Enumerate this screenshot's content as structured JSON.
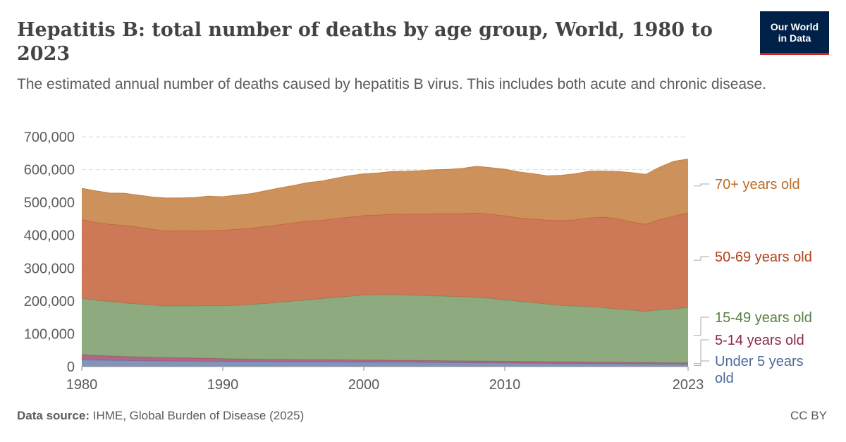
{
  "title": "Hepatitis B: total number of deaths by age group, World, 1980 to 2023",
  "subtitle": "The estimated annual number of deaths caused by hepatitis B virus. This includes both acute and chronic disease.",
  "logo": {
    "line1": "Our World",
    "line2": "in Data",
    "bg_color": "#002147",
    "accent_color": "#ce261e"
  },
  "footer": {
    "source_label": "Data source:",
    "source_text": "IHME, Global Burden of Disease (2025)",
    "license": "CC BY"
  },
  "chart_data": {
    "type": "area",
    "stacked": true,
    "ylim": [
      0,
      700000
    ],
    "yticks": [
      0,
      100000,
      200000,
      300000,
      400000,
      500000,
      600000,
      700000
    ],
    "ytick_labels": [
      "0",
      "100,000",
      "200,000",
      "300,000",
      "400,000",
      "500,000",
      "600,000",
      "700,000"
    ],
    "xlim": [
      1980,
      2023
    ],
    "xticks": [
      1980,
      1990,
      2000,
      2010,
      2023
    ],
    "xtick_labels": [
      "1980",
      "1990",
      "2000",
      "2010",
      "2023"
    ],
    "grid": true,
    "legend_position": "right",
    "x": [
      1980,
      1981,
      1982,
      1983,
      1984,
      1985,
      1986,
      1987,
      1988,
      1989,
      1990,
      1991,
      1992,
      1993,
      1994,
      1995,
      1996,
      1997,
      1998,
      1999,
      2000,
      2001,
      2002,
      2003,
      2004,
      2005,
      2006,
      2007,
      2008,
      2009,
      2010,
      2011,
      2012,
      2013,
      2014,
      2015,
      2016,
      2017,
      2018,
      2019,
      2020,
      2021,
      2022,
      2023
    ],
    "series": [
      {
        "name": "Under 5 years old",
        "color": "#6b83b0",
        "values": [
          20000,
          19500,
          19000,
          18500,
          18000,
          17500,
          17000,
          16700,
          16400,
          16100,
          15800,
          15500,
          15200,
          15000,
          14800,
          14600,
          14400,
          14200,
          14000,
          13800,
          13600,
          13400,
          13200,
          13000,
          12700,
          12400,
          12100,
          11800,
          11500,
          11200,
          10900,
          10600,
          10300,
          10000,
          9700,
          9400,
          9100,
          8800,
          8500,
          8200,
          7900,
          7600,
          7300,
          7000
        ]
      },
      {
        "name": "5-14 years old",
        "color": "#a14e6e",
        "values": [
          17000,
          14500,
          13500,
          12500,
          11500,
          11000,
          10500,
          10000,
          9500,
          9000,
          8500,
          8000,
          7500,
          7200,
          7000,
          6900,
          6800,
          6700,
          6600,
          6500,
          6400,
          6300,
          6200,
          6100,
          6000,
          5900,
          5800,
          5700,
          5600,
          5500,
          5400,
          5300,
          5200,
          5100,
          5000,
          4900,
          4800,
          4700,
          4600,
          4500,
          4400,
          4300,
          4200,
          4100
        ]
      },
      {
        "name": "15-49 years old",
        "color": "#7a9b68",
        "values": [
          171000,
          168000,
          165000,
          163000,
          161000,
          159000,
          157000,
          158000,
          159000,
          160000,
          161000,
          163000,
          166000,
          170000,
          174000,
          178000,
          182000,
          186000,
          190000,
          194000,
          198000,
          199000,
          200000,
          199000,
          198000,
          197000,
          196000,
          195000,
          194000,
          191000,
          187000,
          183000,
          179000,
          175000,
          172000,
          170000,
          169000,
          166000,
          162000,
          159000,
          156000,
          161000,
          164000,
          169000
        ]
      },
      {
        "name": "50-69 years old",
        "color": "#c4603a",
        "values": [
          240000,
          237000,
          236000,
          236000,
          234000,
          231000,
          228000,
          229000,
          228000,
          229000,
          230000,
          232000,
          233000,
          234000,
          236000,
          238000,
          240000,
          238000,
          240000,
          241000,
          242000,
          243000,
          245000,
          246000,
          248000,
          250000,
          252000,
          253000,
          257000,
          256000,
          256000,
          254000,
          255000,
          256000,
          258000,
          263000,
          270000,
          276000,
          275000,
          269000,
          265000,
          275000,
          283000,
          288000
        ]
      },
      {
        "name": "70+ years old",
        "color": "#c47f3f",
        "values": [
          95000,
          96000,
          95000,
          98000,
          98000,
          98000,
          101000,
          100000,
          102000,
          105000,
          102000,
          104000,
          105000,
          109000,
          112000,
          114000,
          117000,
          120000,
          123000,
          126000,
          127000,
          128000,
          130000,
          131000,
          132000,
          134000,
          135000,
          138000,
          142000,
          142000,
          142000,
          140000,
          138000,
          135000,
          138000,
          140000,
          142000,
          140000,
          144000,
          150000,
          152000,
          160000,
          167000,
          164000
        ]
      }
    ]
  }
}
